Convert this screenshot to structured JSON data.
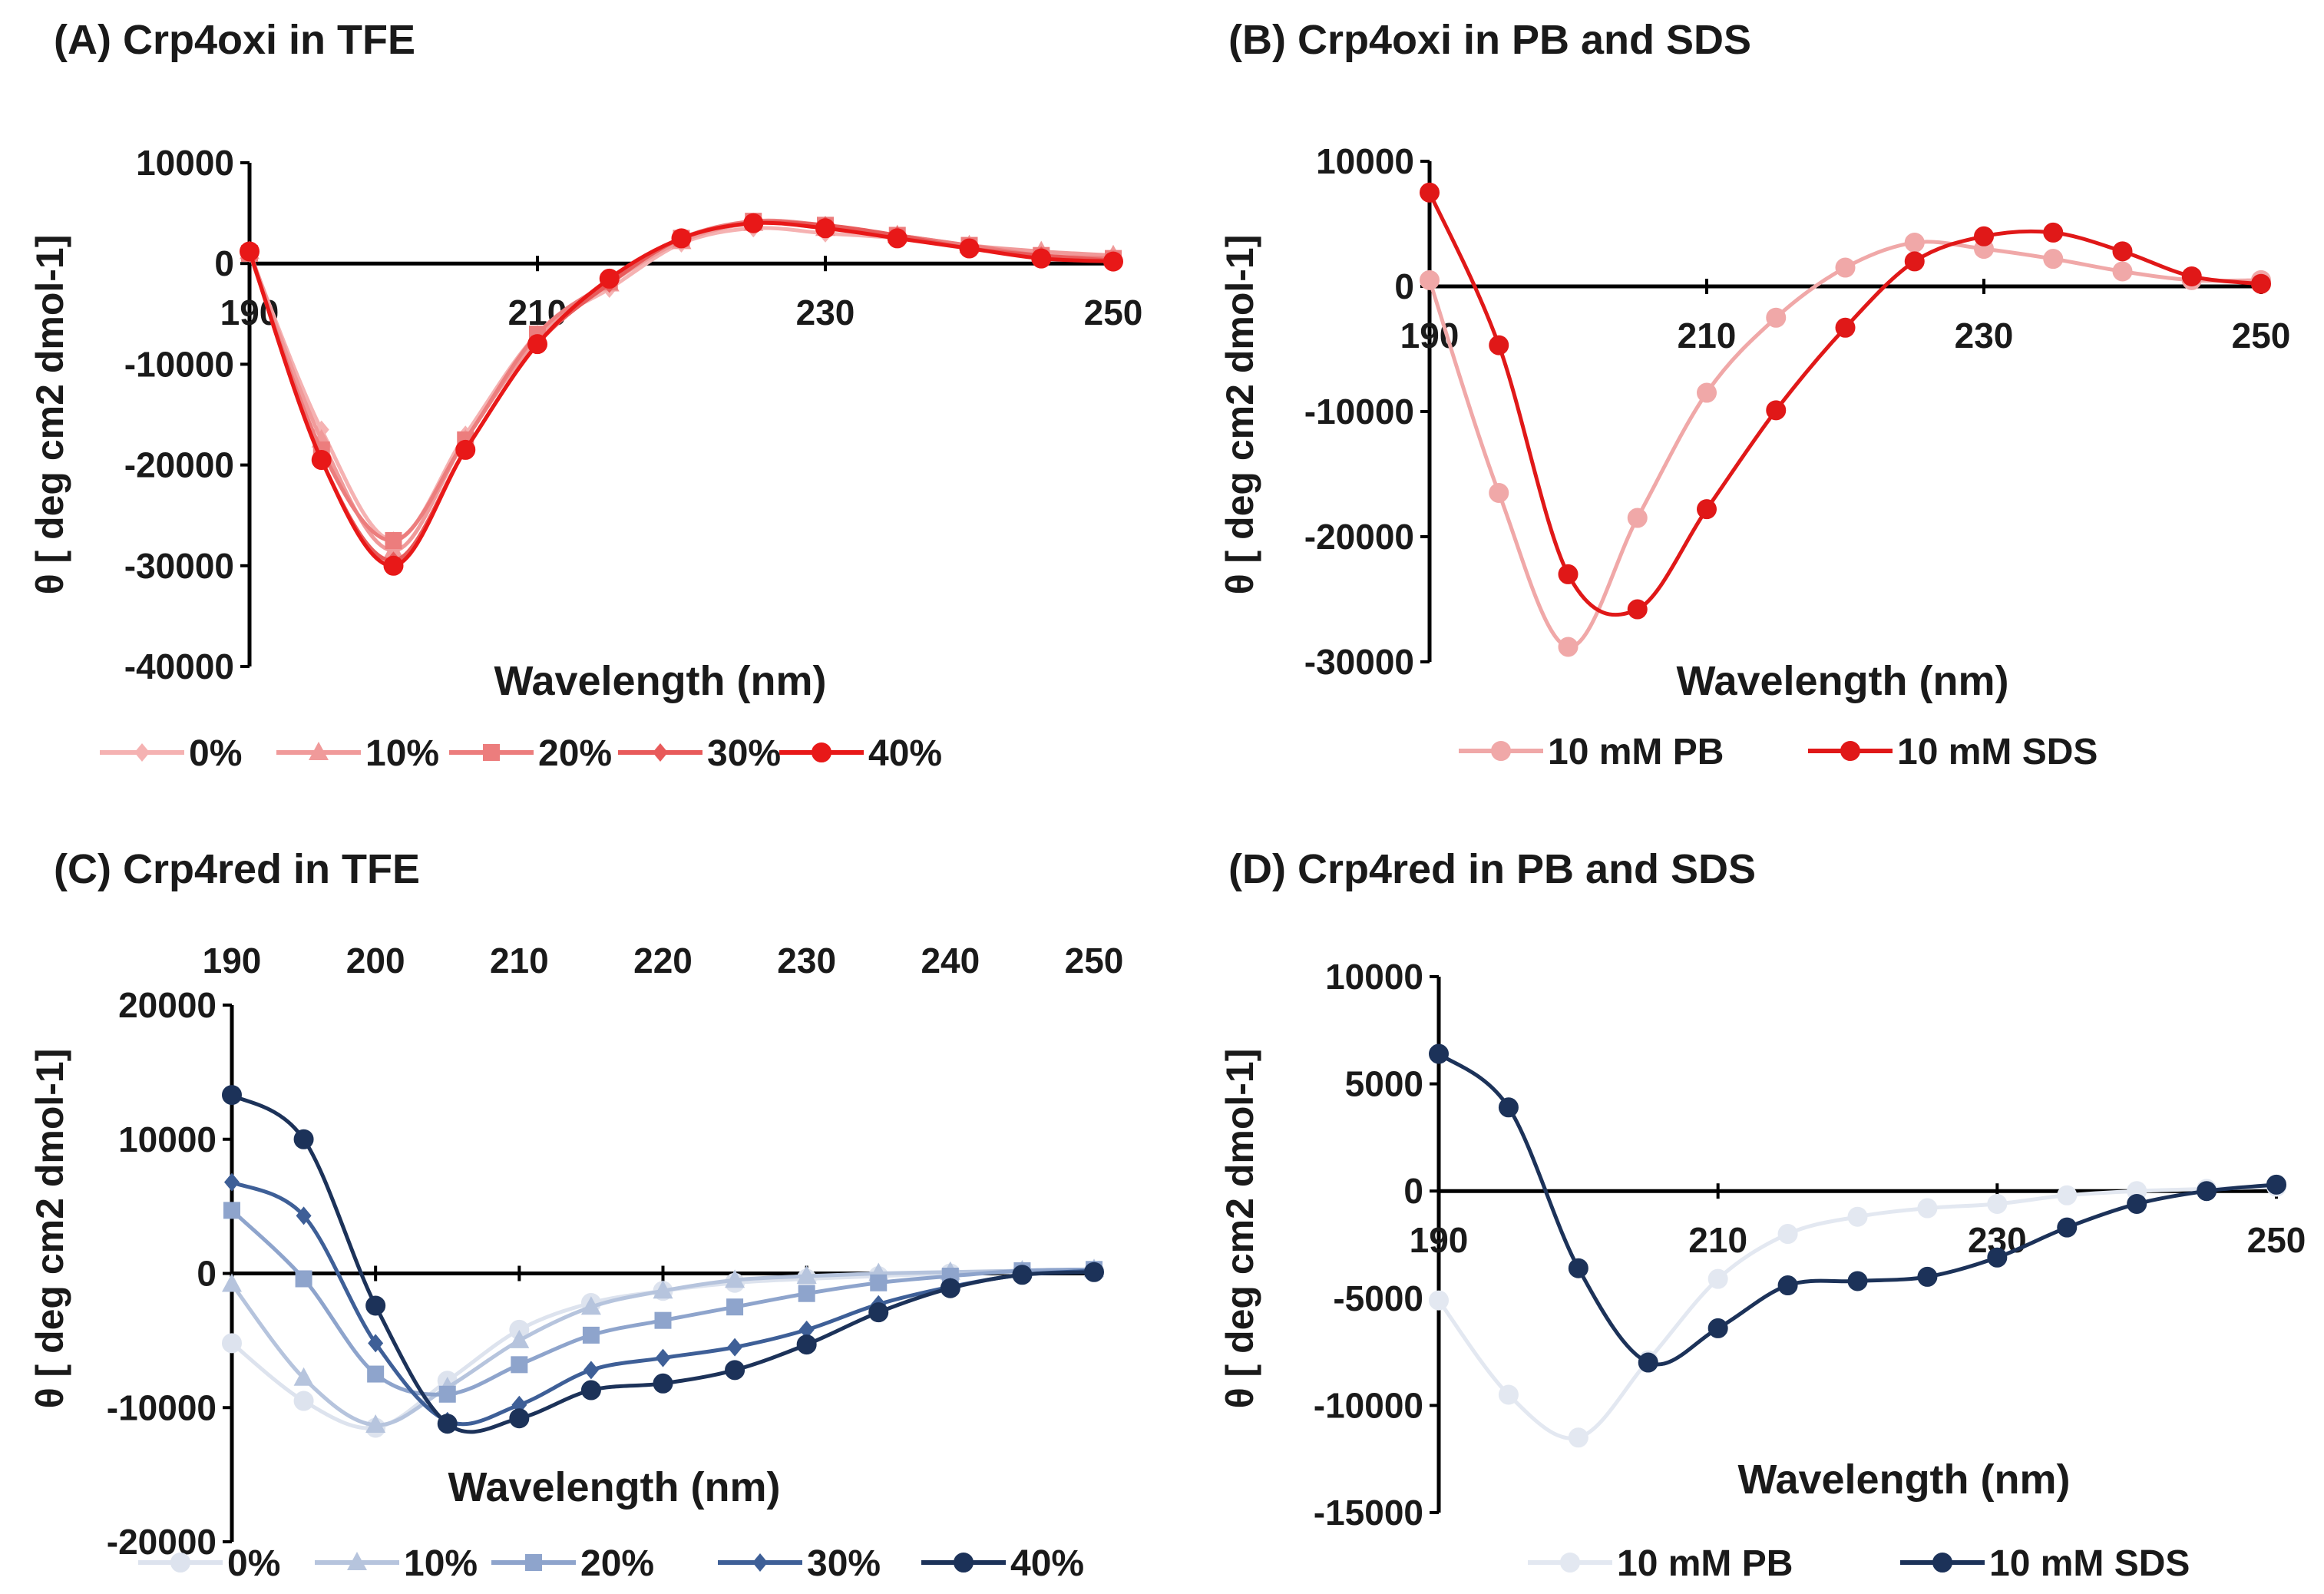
{
  "colors": {
    "red_0": "#f5b2b2",
    "red_10": "#f09a9a",
    "red_20": "#ec7d7d",
    "red_30": "#e85a5a",
    "red_40": "#e81818",
    "pb_oxi": "#f0a8a8",
    "sds_oxi": "#e01818",
    "blue_0": "#dde3ee",
    "blue_10": "#b6c4dd",
    "blue_20": "#8ea4cc",
    "blue_30": "#3e5f97",
    "blue_40": "#1c3259",
    "pb_red": "#e3e8f1",
    "sds_red": "#1c3259"
  },
  "chart_data": [
    {
      "id": "A",
      "type": "line",
      "title": "(A) Crp4oxi in TFE",
      "xlabel": "Wavelength (nm)",
      "ylabel": "θ [ deg cm2 dmol-1]",
      "xlim": [
        190,
        250
      ],
      "ylim": [
        -40000,
        10000
      ],
      "x_axis_position": "top-crossing at y=0",
      "xticks": [
        190,
        210,
        230,
        250
      ],
      "xtick_labels": [
        "190",
        "210",
        "230",
        "250"
      ],
      "yticks": [
        10000,
        0,
        -10000,
        -20000,
        -30000,
        -40000
      ],
      "ytick_labels": [
        "10000",
        "0",
        "-10000",
        "-20000",
        "-30000",
        "-40000"
      ],
      "x": [
        190,
        195,
        200,
        205,
        210,
        215,
        220,
        225,
        230,
        235,
        240,
        245,
        250
      ],
      "series": [
        {
          "name": "0%",
          "marker": "diamond",
          "color": "red_0",
          "values": [
            1000,
            -16500,
            -27500,
            -17000,
            -7000,
            -2500,
            2000,
            3500,
            3000,
            2500,
            1500,
            1000,
            800
          ]
        },
        {
          "name": "10%",
          "marker": "triangle",
          "color": "red_10",
          "values": [
            1200,
            -17500,
            -28500,
            -17500,
            -7500,
            -2000,
            2200,
            4000,
            3500,
            2800,
            1800,
            1200,
            800
          ]
        },
        {
          "name": "20%",
          "marker": "square",
          "color": "red_20",
          "values": [
            1000,
            -18500,
            -27500,
            -17500,
            -7000,
            -1800,
            2500,
            4200,
            3800,
            2800,
            1800,
            800,
            500
          ]
        },
        {
          "name": "30%",
          "marker": "diamond",
          "color": "red_30",
          "values": [
            1200,
            -19500,
            -29500,
            -18500,
            -8000,
            -2000,
            2500,
            4000,
            3800,
            2800,
            1500,
            800,
            300
          ]
        },
        {
          "name": "40%",
          "marker": "circle",
          "color": "red_40",
          "values": [
            1200,
            -19500,
            -30000,
            -18500,
            -8000,
            -1500,
            2500,
            4000,
            3500,
            2500,
            1500,
            500,
            200
          ]
        }
      ],
      "legend": [
        "0%",
        "10%",
        "20%",
        "30%",
        "40%"
      ]
    },
    {
      "id": "B",
      "type": "line",
      "title": "(B) Crp4oxi in PB and SDS",
      "xlabel": "Wavelength (nm)",
      "ylabel": "θ [ deg cm2 dmol-1]",
      "xlim": [
        190,
        250
      ],
      "ylim": [
        -30000,
        10000
      ],
      "xticks": [
        190,
        210,
        230,
        250
      ],
      "xtick_labels": [
        "190",
        "210",
        "230",
        "250"
      ],
      "yticks": [
        10000,
        0,
        -10000,
        -20000,
        -30000
      ],
      "ytick_labels": [
        "10000",
        "0",
        "-10000",
        "-20000",
        "-30000"
      ],
      "x": [
        190,
        195,
        200,
        205,
        210,
        215,
        220,
        225,
        230,
        235,
        240,
        245,
        250
      ],
      "series": [
        {
          "name": "10 mM PB",
          "marker": "circle",
          "color": "pb_oxi",
          "values": [
            500,
            -16500,
            -28800,
            -18500,
            -8500,
            -2500,
            1500,
            3500,
            3000,
            2200,
            1200,
            500,
            500
          ]
        },
        {
          "name": "10 mM SDS",
          "marker": "circle",
          "color": "sds_oxi",
          "values": [
            7500,
            -4700,
            -23000,
            -25800,
            -17800,
            -9900,
            -3300,
            2000,
            4000,
            4300,
            2800,
            800,
            200
          ]
        }
      ],
      "legend": [
        "10 mM PB",
        "10 mM SDS"
      ]
    },
    {
      "id": "C",
      "type": "line",
      "title": "(C) Crp4red in TFE",
      "xlabel": "Wavelength (nm)",
      "ylabel": "θ [ deg cm2 dmol-1]",
      "xlim": [
        190,
        250
      ],
      "ylim": [
        -20000,
        20000
      ],
      "xticks": [
        190,
        200,
        210,
        220,
        230,
        240,
        250
      ],
      "xtick_labels": [
        "190",
        "200",
        "210",
        "220",
        "230",
        "240",
        "250"
      ],
      "yticks": [
        20000,
        10000,
        0,
        -10000,
        -20000
      ],
      "ytick_labels": [
        "20000",
        "10000",
        "0",
        "-10000",
        "-20000"
      ],
      "x": [
        190,
        195,
        200,
        205,
        210,
        215,
        220,
        225,
        230,
        235,
        240,
        245,
        250
      ],
      "series": [
        {
          "name": "0%",
          "marker": "circle",
          "color": "blue_0",
          "values": [
            -5200,
            -9500,
            -11500,
            -8000,
            -4200,
            -2200,
            -1300,
            -700,
            -400,
            -200,
            0,
            100,
            200
          ]
        },
        {
          "name": "10%",
          "marker": "triangle",
          "color": "blue_10",
          "values": [
            -800,
            -7800,
            -11300,
            -8500,
            -5000,
            -2500,
            -1300,
            -500,
            -200,
            0,
            100,
            200,
            300
          ]
        },
        {
          "name": "20%",
          "marker": "square",
          "color": "blue_20",
          "values": [
            4700,
            -400,
            -7500,
            -9000,
            -6800,
            -4600,
            -3500,
            -2500,
            -1500,
            -700,
            -200,
            200,
            300
          ]
        },
        {
          "name": "30%",
          "marker": "diamond",
          "color": "blue_30",
          "values": [
            6800,
            4300,
            -5200,
            -11000,
            -9800,
            -7200,
            -6300,
            -5500,
            -4200,
            -2300,
            -1000,
            -100,
            200
          ]
        },
        {
          "name": "40%",
          "marker": "circle",
          "color": "blue_40",
          "values": [
            13300,
            10000,
            -2400,
            -11200,
            -10800,
            -8700,
            -8200,
            -7200,
            -5300,
            -2900,
            -1100,
            -100,
            100
          ]
        }
      ],
      "legend": [
        "0%",
        "10%",
        "20%",
        "30%",
        "40%"
      ]
    },
    {
      "id": "D",
      "type": "line",
      "title": "(D) Crp4red in PB and SDS",
      "xlabel": "Wavelength (nm)",
      "ylabel": "θ [ deg cm2 dmol-1]",
      "xlim": [
        190,
        250
      ],
      "ylim": [
        -15000,
        10000
      ],
      "xticks": [
        190,
        210,
        230,
        250
      ],
      "xtick_labels": [
        "190",
        "210",
        "230",
        "250"
      ],
      "yticks": [
        10000,
        5000,
        0,
        -5000,
        -10000,
        -15000
      ],
      "ytick_labels": [
        "10000",
        "5000",
        "0",
        "-5000",
        "-10000",
        "-15000"
      ],
      "x": [
        190,
        195,
        200,
        205,
        210,
        215,
        220,
        225,
        230,
        235,
        240,
        245,
        250
      ],
      "series": [
        {
          "name": "10 mM PB",
          "marker": "circle",
          "color": "pb_red",
          "values": [
            -5100,
            -9500,
            -11500,
            -7900,
            -4100,
            -2000,
            -1200,
            -800,
            -600,
            -200,
            0,
            100,
            200
          ]
        },
        {
          "name": "10 mM SDS",
          "marker": "circle",
          "color": "sds_red",
          "values": [
            6400,
            3900,
            -3600,
            -8000,
            -6400,
            -4400,
            -4200,
            -4000,
            -3100,
            -1700,
            -600,
            0,
            300
          ]
        }
      ],
      "legend": [
        "10 mM PB",
        "10 mM SDS"
      ]
    }
  ]
}
